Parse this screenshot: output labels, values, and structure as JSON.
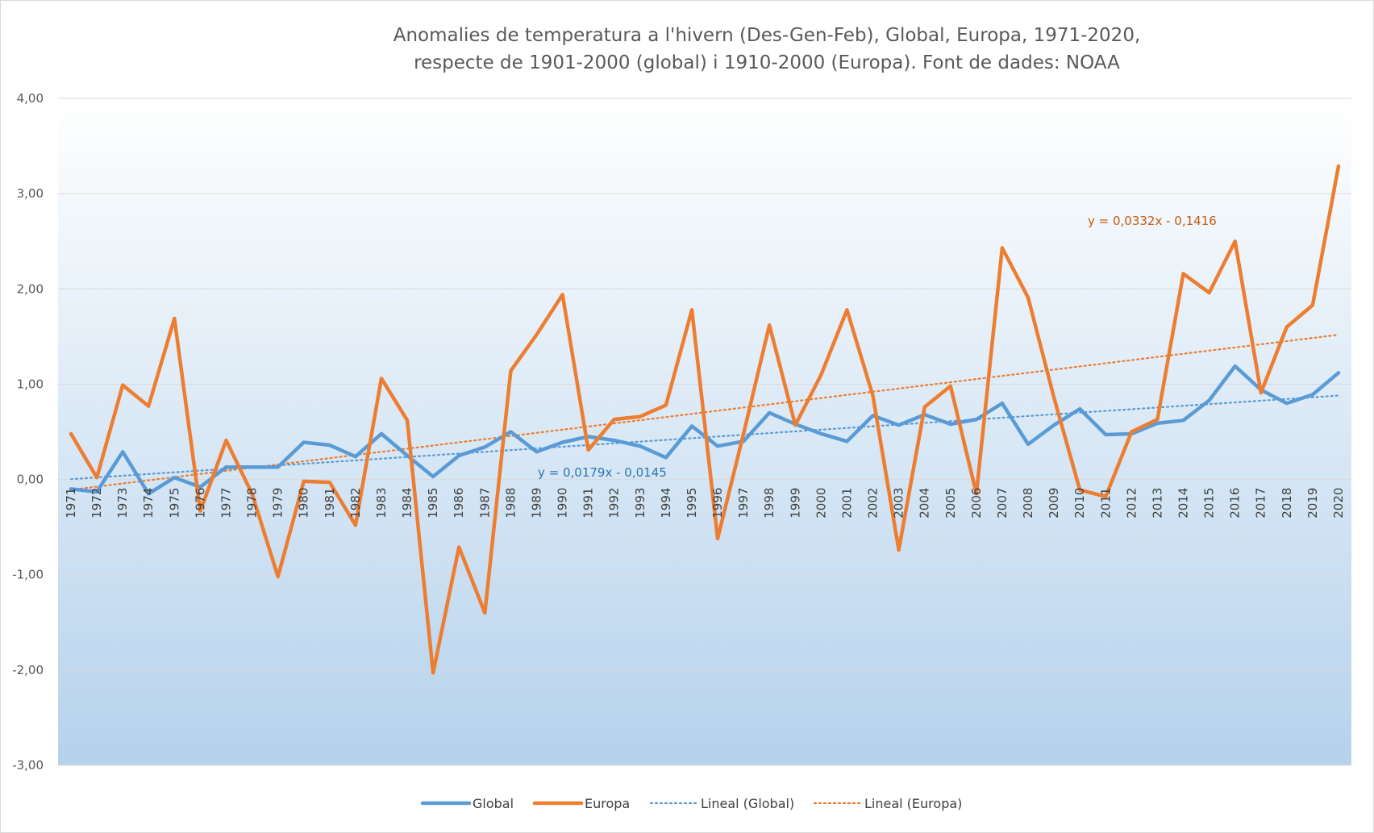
{
  "chart_data": {
    "type": "line",
    "title": "Anomalies de temperatura a l'hivern (Des-Gen-Feb), Global, Europa, 1971-2020,",
    "subtitle": "respecte de 1901-2000 (global) i 1910-2000 (Europa). Font de dades: NOAA",
    "xlabel": "",
    "ylabel": "",
    "ylim": [
      -3,
      4
    ],
    "yticks": [
      "4,00",
      "3,00",
      "2,00",
      "1,00",
      "0,00",
      "-1,00",
      "-2,00",
      "-3,00"
    ],
    "ytick_values": [
      4,
      3,
      2,
      1,
      0,
      -1,
      -2,
      -3
    ],
    "grid": true,
    "legend_position": "bottom",
    "categories": [
      "1971",
      "1972",
      "1973",
      "1974",
      "1975",
      "1976",
      "1977",
      "1978",
      "1979",
      "1980",
      "1981",
      "1982",
      "1983",
      "1984",
      "1985",
      "1986",
      "1987",
      "1988",
      "1989",
      "1990",
      "1991",
      "1992",
      "1993",
      "1994",
      "1995",
      "1996",
      "1997",
      "1998",
      "1999",
      "2000",
      "2001",
      "2002",
      "2003",
      "2004",
      "2005",
      "2006",
      "2007",
      "2008",
      "2009",
      "2010",
      "2011",
      "2012",
      "2013",
      "2014",
      "2015",
      "2016",
      "2017",
      "2018",
      "2019",
      "2020"
    ],
    "series": [
      {
        "name": "Global",
        "color": "#5b9bd5",
        "values": [
          -0.1,
          -0.13,
          0.29,
          -0.15,
          0.02,
          -0.08,
          0.13,
          0.13,
          0.13,
          0.39,
          0.36,
          0.24,
          0.48,
          0.25,
          0.03,
          0.25,
          0.34,
          0.5,
          0.29,
          0.39,
          0.45,
          0.41,
          0.35,
          0.23,
          0.56,
          0.35,
          0.4,
          0.7,
          0.58,
          0.48,
          0.4,
          0.67,
          0.57,
          0.68,
          0.58,
          0.63,
          0.8,
          0.37,
          0.57,
          0.74,
          0.47,
          0.48,
          0.59,
          0.62,
          0.83,
          1.19,
          0.94,
          0.8,
          0.89,
          1.12
        ]
      },
      {
        "name": "Europa",
        "color": "#ed7d31",
        "values": [
          0.48,
          0.02,
          0.99,
          0.77,
          1.69,
          -0.33,
          0.41,
          -0.15,
          -1.02,
          -0.02,
          -0.03,
          -0.48,
          1.06,
          0.62,
          -2.03,
          -0.71,
          -1.4,
          1.14,
          1.52,
          1.94,
          0.31,
          0.63,
          0.66,
          0.78,
          1.78,
          -0.62,
          0.48,
          1.62,
          0.57,
          1.1,
          1.78,
          0.88,
          -0.74,
          0.76,
          0.98,
          -0.15,
          2.43,
          1.91,
          0.86,
          -0.11,
          -0.18,
          0.5,
          0.63,
          2.16,
          1.96,
          2.5,
          0.91,
          1.6,
          1.83,
          3.29
        ]
      }
    ],
    "trendlines": [
      {
        "name": "Lineal  (Global)",
        "color": "#5b9bd5",
        "slope": 0.0179,
        "intercept": -0.0145,
        "equation": "y = 0,0179x - 0,0145"
      },
      {
        "name": "Lineal  (Europa)",
        "color": "#ed7d31",
        "slope": 0.0332,
        "intercept": -0.1416,
        "equation": "y = 0,0332x - 0,1416"
      }
    ]
  }
}
